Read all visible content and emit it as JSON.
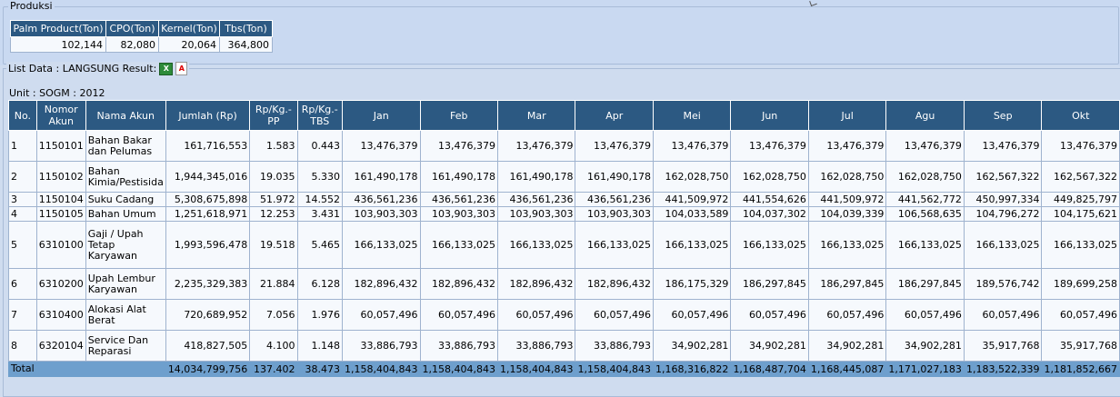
{
  "produksi": {
    "legend": "Produksi",
    "headers": [
      "Palm Product(Ton)",
      "CPO(Ton)",
      "Kernel(Ton)",
      "Tbs(Ton)"
    ],
    "values": [
      "102,144",
      "82,080",
      "20,064",
      "364,800"
    ]
  },
  "list": {
    "legend": "List Data : LANGSUNG Result:",
    "excel_icon": "excel-icon",
    "pdf_icon": "pdf-icon",
    "unit": "Unit : SOGM : 2012",
    "headers": [
      "No.",
      "Nomor Akun",
      "Nama Akun",
      "Jumlah (Rp)",
      "Rp/Kg.-PP",
      "Rp/Kg.-TBS",
      "Jan",
      "Feb",
      "Mar",
      "Apr",
      "Mei",
      "Jun",
      "Jul",
      "Agu",
      "Sep",
      "Okt"
    ],
    "rows": [
      [
        "1",
        "1150101",
        "Bahan Bakar dan Pelumas",
        "161,716,553",
        "1.583",
        "0.443",
        "13,476,379",
        "13,476,379",
        "13,476,379",
        "13,476,379",
        "13,476,379",
        "13,476,379",
        "13,476,379",
        "13,476,379",
        "13,476,379",
        "13,476,379"
      ],
      [
        "2",
        "1150102",
        "Bahan Kimia/Pestisida",
        "1,944,345,016",
        "19.035",
        "5.330",
        "161,490,178",
        "161,490,178",
        "161,490,178",
        "161,490,178",
        "162,028,750",
        "162,028,750",
        "162,028,750",
        "162,028,750",
        "162,567,322",
        "162,567,322"
      ],
      [
        "3",
        "1150104",
        "Suku Cadang",
        "5,308,675,898",
        "51.972",
        "14.552",
        "436,561,236",
        "436,561,236",
        "436,561,236",
        "436,561,236",
        "441,509,972",
        "441,554,626",
        "441,509,972",
        "441,562,772",
        "450,997,334",
        "449,825,797"
      ],
      [
        "4",
        "1150105",
        "Bahan Umum",
        "1,251,618,971",
        "12.253",
        "3.431",
        "103,903,303",
        "103,903,303",
        "103,903,303",
        "103,903,303",
        "104,033,589",
        "104,037,302",
        "104,039,339",
        "106,568,635",
        "104,796,272",
        "104,175,621"
      ],
      [
        "5",
        "6310100",
        "Gaji / Upah Tetap Karyawan",
        "1,993,596,478",
        "19.518",
        "5.465",
        "166,133,025",
        "166,133,025",
        "166,133,025",
        "166,133,025",
        "166,133,025",
        "166,133,025",
        "166,133,025",
        "166,133,025",
        "166,133,025",
        "166,133,025"
      ],
      [
        "6",
        "6310200",
        "Upah Lembur Karyawan",
        "2,235,329,383",
        "21.884",
        "6.128",
        "182,896,432",
        "182,896,432",
        "182,896,432",
        "182,896,432",
        "186,175,329",
        "186,297,845",
        "186,297,845",
        "186,297,845",
        "189,576,742",
        "189,699,258"
      ],
      [
        "7",
        "6310400",
        "Alokasi Alat Berat",
        "720,689,952",
        "7.056",
        "1.976",
        "60,057,496",
        "60,057,496",
        "60,057,496",
        "60,057,496",
        "60,057,496",
        "60,057,496",
        "60,057,496",
        "60,057,496",
        "60,057,496",
        "60,057,496"
      ],
      [
        "8",
        "6320104",
        "Service Dan Reparasi",
        "418,827,505",
        "4.100",
        "1.148",
        "33,886,793",
        "33,886,793",
        "33,886,793",
        "33,886,793",
        "34,902,281",
        "34,902,281",
        "34,902,281",
        "34,902,281",
        "35,917,768",
        "35,917,768"
      ]
    ],
    "total": [
      "Total",
      "",
      "",
      "14,034,799,756",
      "137.402",
      "38.473",
      "1,158,404,843",
      "1,158,404,843",
      "1,158,404,843",
      "1,158,404,843",
      "1,168,316,822",
      "1,168,487,704",
      "1,168,445,087",
      "1,171,027,183",
      "1,183,522,339",
      "1,181,852,667"
    ]
  }
}
